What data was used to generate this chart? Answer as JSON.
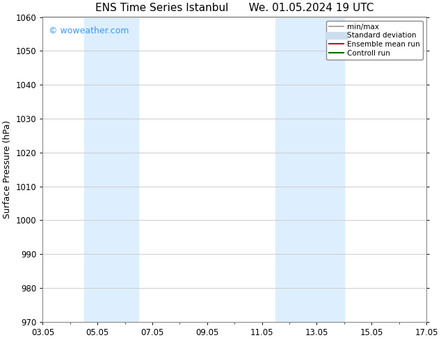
{
  "title": "ENS Time Series Istanbul      We. 01.05.2024 19 UTC",
  "ylabel": "Surface Pressure (hPa)",
  "ylim": [
    970,
    1060
  ],
  "yticks": [
    970,
    980,
    990,
    1000,
    1010,
    1020,
    1030,
    1040,
    1050,
    1060
  ],
  "x_start_day": 2,
  "x_end_day": 16,
  "xtick_day_positions": [
    2,
    4,
    6,
    8,
    10,
    12,
    14,
    16
  ],
  "xtick_labels": [
    "03.05",
    "05.05",
    "07.05",
    "09.05",
    "11.05",
    "13.05",
    "15.05",
    "17.05"
  ],
  "watermark": "© woweather.com",
  "watermark_color": "#3399ff",
  "bg_color": "#ffffff",
  "shaded_regions": [
    {
      "xmin": 3.5,
      "xmax": 5.5,
      "color": "#ddeeff"
    },
    {
      "xmin": 10.5,
      "xmax": 11.5,
      "color": "#ddeeff"
    },
    {
      "xmin": 11.5,
      "xmax": 13.0,
      "color": "#ddeeff"
    }
  ],
  "legend_entries": [
    {
      "label": "min/max",
      "color": "#aaaaaa",
      "lw": 1.5,
      "style": "solid"
    },
    {
      "label": "Standard deviation",
      "color": "#ccddee",
      "lw": 8,
      "style": "solid"
    },
    {
      "label": "Ensemble mean run",
      "color": "#cc0000",
      "lw": 1.5,
      "style": "solid"
    },
    {
      "label": "Controll run",
      "color": "#006600",
      "lw": 1.5,
      "style": "solid"
    }
  ],
  "grid_color": "#cccccc",
  "title_fontsize": 11,
  "axis_label_fontsize": 9,
  "tick_fontsize": 8.5,
  "legend_fontsize": 7.5
}
